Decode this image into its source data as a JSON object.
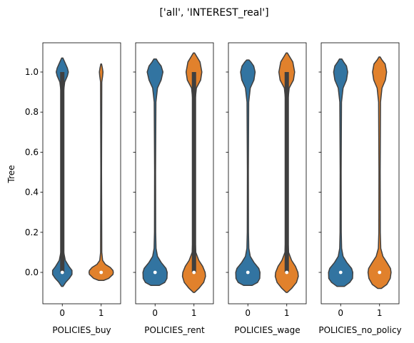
{
  "title": "['all', 'INTEREST_real']",
  "colors": {
    "0": "#3274a1",
    "1": "#e1812c",
    "inner": "#3f3f3f"
  },
  "chart_data": {
    "type": "violin",
    "title": "['all', 'INTEREST_real']",
    "ylabel": "Tree",
    "ylim": [
      -0.16,
      1.16
    ],
    "yticks": [
      "0.0",
      "0.2",
      "0.4",
      "0.6",
      "0.8",
      "1.0"
    ],
    "sharey": true,
    "panels": [
      {
        "xlabel": "POLICIES_buy",
        "categories": [
          "0",
          "1"
        ],
        "violins": [
          {
            "category": "0",
            "min": -0.07,
            "max": 1.07,
            "box": [
              0.0,
              1.0
            ],
            "whisker": [
              0.0,
              1.0
            ],
            "median": 0.0,
            "density": [
              [
                -0.07,
                0.06
              ],
              [
                -0.05,
                0.28
              ],
              [
                -0.03,
                0.58
              ],
              [
                -0.01,
                0.8
              ],
              [
                0.01,
                0.8
              ],
              [
                0.03,
                0.55
              ],
              [
                0.06,
                0.25
              ],
              [
                0.1,
                0.12
              ],
              [
                0.2,
                0.08
              ],
              [
                0.5,
                0.06
              ],
              [
                0.8,
                0.07
              ],
              [
                0.9,
                0.1
              ],
              [
                0.95,
                0.2
              ],
              [
                0.98,
                0.42
              ],
              [
                1.0,
                0.5
              ],
              [
                1.02,
                0.42
              ],
              [
                1.05,
                0.2
              ],
              [
                1.07,
                0.05
              ]
            ]
          },
          {
            "category": "1",
            "min": -0.04,
            "max": 1.04,
            "box": [
              0.0,
              0.0
            ],
            "whisker": [
              0.0,
              0.0
            ],
            "median": 0.0,
            "density": [
              [
                -0.04,
                0.2
              ],
              [
                -0.03,
                0.62
              ],
              [
                -0.01,
                0.97
              ],
              [
                0.0,
                1.0
              ],
              [
                0.01,
                0.97
              ],
              [
                0.025,
                0.75
              ],
              [
                0.04,
                0.35
              ],
              [
                0.06,
                0.12
              ],
              [
                0.1,
                0.05
              ],
              [
                0.5,
                0.03
              ],
              [
                0.95,
                0.05
              ],
              [
                0.98,
                0.12
              ],
              [
                1.0,
                0.15
              ],
              [
                1.02,
                0.1
              ],
              [
                1.04,
                0.03
              ]
            ]
          }
        ]
      },
      {
        "xlabel": "POLICIES_rent",
        "categories": [
          "0",
          "1"
        ],
        "violins": [
          {
            "category": "0",
            "min": -0.065,
            "max": 1.065,
            "box": [
              0.0,
              0.0
            ],
            "whisker": [
              0.0,
              0.0
            ],
            "median": 0.0,
            "density": [
              [
                -0.065,
                0.35
              ],
              [
                -0.05,
                0.8
              ],
              [
                -0.03,
                0.98
              ],
              [
                0.0,
                1.0
              ],
              [
                0.02,
                0.9
              ],
              [
                0.05,
                0.5
              ],
              [
                0.08,
                0.2
              ],
              [
                0.12,
                0.08
              ],
              [
                0.2,
                0.05
              ],
              [
                0.5,
                0.04
              ],
              [
                0.85,
                0.07
              ],
              [
                0.92,
                0.2
              ],
              [
                0.96,
                0.5
              ],
              [
                1.0,
                0.65
              ],
              [
                1.03,
                0.5
              ],
              [
                1.05,
                0.25
              ],
              [
                1.065,
                0.1
              ]
            ]
          },
          {
            "category": "1",
            "min": -0.1,
            "max": 1.095,
            "box": [
              0.0,
              1.0
            ],
            "whisker": [
              0.0,
              1.0
            ],
            "median": 0.0,
            "density": [
              [
                -0.1,
                0.05
              ],
              [
                -0.08,
                0.4
              ],
              [
                -0.05,
                0.8
              ],
              [
                -0.02,
                0.95
              ],
              [
                0.0,
                0.92
              ],
              [
                0.03,
                0.72
              ],
              [
                0.06,
                0.4
              ],
              [
                0.1,
                0.15
              ],
              [
                0.2,
                0.07
              ],
              [
                0.5,
                0.05
              ],
              [
                0.85,
                0.08
              ],
              [
                0.92,
                0.2
              ],
              [
                0.96,
                0.55
              ],
              [
                1.0,
                0.65
              ],
              [
                1.05,
                0.5
              ],
              [
                1.08,
                0.2
              ],
              [
                1.095,
                0.05
              ]
            ]
          }
        ]
      },
      {
        "xlabel": "POLICIES_wage",
        "categories": [
          "0",
          "1"
        ],
        "violins": [
          {
            "category": "0",
            "min": -0.065,
            "max": 1.06,
            "box": [
              0.0,
              0.0
            ],
            "whisker": [
              0.0,
              0.0
            ],
            "median": 0.0,
            "density": [
              [
                -0.065,
                0.35
              ],
              [
                -0.05,
                0.8
              ],
              [
                -0.03,
                0.98
              ],
              [
                0.0,
                1.0
              ],
              [
                0.02,
                0.9
              ],
              [
                0.05,
                0.5
              ],
              [
                0.08,
                0.2
              ],
              [
                0.12,
                0.08
              ],
              [
                0.2,
                0.05
              ],
              [
                0.5,
                0.04
              ],
              [
                0.85,
                0.07
              ],
              [
                0.92,
                0.2
              ],
              [
                0.96,
                0.5
              ],
              [
                1.0,
                0.6
              ],
              [
                1.03,
                0.48
              ],
              [
                1.05,
                0.25
              ],
              [
                1.06,
                0.1
              ]
            ]
          },
          {
            "category": "1",
            "min": -0.1,
            "max": 1.095,
            "box": [
              0.0,
              1.0
            ],
            "whisker": [
              0.0,
              1.0
            ],
            "median": 0.0,
            "density": [
              [
                -0.1,
                0.05
              ],
              [
                -0.08,
                0.4
              ],
              [
                -0.05,
                0.8
              ],
              [
                -0.02,
                0.95
              ],
              [
                0.0,
                0.92
              ],
              [
                0.03,
                0.72
              ],
              [
                0.06,
                0.4
              ],
              [
                0.1,
                0.15
              ],
              [
                0.2,
                0.07
              ],
              [
                0.5,
                0.05
              ],
              [
                0.85,
                0.08
              ],
              [
                0.92,
                0.2
              ],
              [
                0.96,
                0.55
              ],
              [
                1.0,
                0.65
              ],
              [
                1.05,
                0.5
              ],
              [
                1.08,
                0.2
              ],
              [
                1.095,
                0.05
              ]
            ]
          }
        ]
      },
      {
        "xlabel": "POLICIES_no_policy",
        "categories": [
          "0",
          "1"
        ],
        "violins": [
          {
            "category": "0",
            "min": -0.07,
            "max": 1.065,
            "box": [
              0.0,
              0.0
            ],
            "whisker": [
              0.0,
              0.0
            ],
            "median": 0.0,
            "density": [
              [
                -0.07,
                0.3
              ],
              [
                -0.05,
                0.75
              ],
              [
                -0.03,
                0.98
              ],
              [
                0.0,
                1.0
              ],
              [
                0.02,
                0.9
              ],
              [
                0.05,
                0.5
              ],
              [
                0.08,
                0.2
              ],
              [
                0.12,
                0.08
              ],
              [
                0.2,
                0.05
              ],
              [
                0.5,
                0.04
              ],
              [
                0.85,
                0.07
              ],
              [
                0.92,
                0.2
              ],
              [
                0.96,
                0.48
              ],
              [
                1.0,
                0.58
              ],
              [
                1.03,
                0.48
              ],
              [
                1.05,
                0.25
              ],
              [
                1.065,
                0.1
              ]
            ]
          },
          {
            "category": "1",
            "min": -0.08,
            "max": 1.075,
            "box": [
              0.0,
              0.0
            ],
            "whisker": [
              0.0,
              0.0
            ],
            "median": 0.0,
            "density": [
              [
                -0.08,
                0.15
              ],
              [
                -0.06,
                0.6
              ],
              [
                -0.03,
                0.88
              ],
              [
                0.0,
                0.95
              ],
              [
                0.02,
                0.9
              ],
              [
                0.05,
                0.6
              ],
              [
                0.08,
                0.28
              ],
              [
                0.12,
                0.1
              ],
              [
                0.2,
                0.06
              ],
              [
                0.5,
                0.05
              ],
              [
                0.85,
                0.08
              ],
              [
                0.92,
                0.2
              ],
              [
                0.96,
                0.48
              ],
              [
                1.0,
                0.58
              ],
              [
                1.04,
                0.46
              ],
              [
                1.06,
                0.2
              ],
              [
                1.075,
                0.05
              ]
            ]
          }
        ]
      }
    ]
  }
}
